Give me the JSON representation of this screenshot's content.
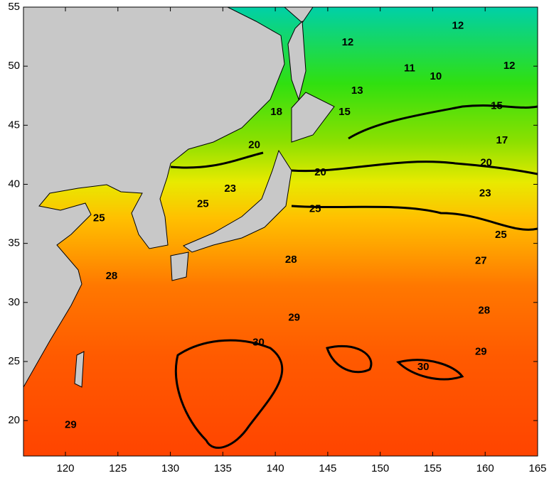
{
  "map": {
    "xlim": [
      116,
      165
    ],
    "ylim": [
      17,
      55
    ],
    "xticks": [
      120,
      125,
      130,
      135,
      140,
      145,
      150,
      155,
      160,
      165
    ],
    "yticks": [
      20,
      25,
      30,
      35,
      40,
      45,
      50,
      55
    ],
    "contour_labels": [
      {
        "value": 12,
        "lon": 157.4,
        "lat": 53.4
      },
      {
        "value": 12,
        "lon": 146.9,
        "lat": 52.0
      },
      {
        "value": 12,
        "lon": 162.3,
        "lat": 50.0
      },
      {
        "value": 11,
        "lon": 152.8,
        "lat": 49.8
      },
      {
        "value": 10,
        "lon": 155.3,
        "lat": 49.1
      },
      {
        "value": 13,
        "lon": 147.8,
        "lat": 47.9
      },
      {
        "value": 15,
        "lon": 146.6,
        "lat": 46.1
      },
      {
        "value": 15,
        "lon": 161.1,
        "lat": 46.6
      },
      {
        "value": 18,
        "lon": 140.1,
        "lat": 46.1
      },
      {
        "value": 17,
        "lon": 161.6,
        "lat": 43.7
      },
      {
        "value": 20,
        "lon": 138.0,
        "lat": 43.3
      },
      {
        "value": 20,
        "lon": 144.3,
        "lat": 41.0
      },
      {
        "value": 20,
        "lon": 160.1,
        "lat": 41.8
      },
      {
        "value": 23,
        "lon": 135.7,
        "lat": 39.6
      },
      {
        "value": 23,
        "lon": 160.0,
        "lat": 39.2
      },
      {
        "value": 25,
        "lon": 133.1,
        "lat": 38.3
      },
      {
        "value": 25,
        "lon": 123.2,
        "lat": 37.1
      },
      {
        "value": 25,
        "lon": 143.8,
        "lat": 37.9
      },
      {
        "value": 25,
        "lon": 161.5,
        "lat": 35.7
      },
      {
        "value": 28,
        "lon": 141.5,
        "lat": 33.6
      },
      {
        "value": 27,
        "lon": 159.6,
        "lat": 33.5
      },
      {
        "value": 28,
        "lon": 124.4,
        "lat": 32.2
      },
      {
        "value": 29,
        "lon": 141.8,
        "lat": 28.7
      },
      {
        "value": 28,
        "lon": 159.9,
        "lat": 29.3
      },
      {
        "value": 30,
        "lon": 138.4,
        "lat": 26.6
      },
      {
        "value": 29,
        "lon": 159.6,
        "lat": 25.8
      },
      {
        "value": 30,
        "lon": 154.1,
        "lat": 24.5
      },
      {
        "value": 29,
        "lon": 120.5,
        "lat": 19.6
      }
    ]
  }
}
